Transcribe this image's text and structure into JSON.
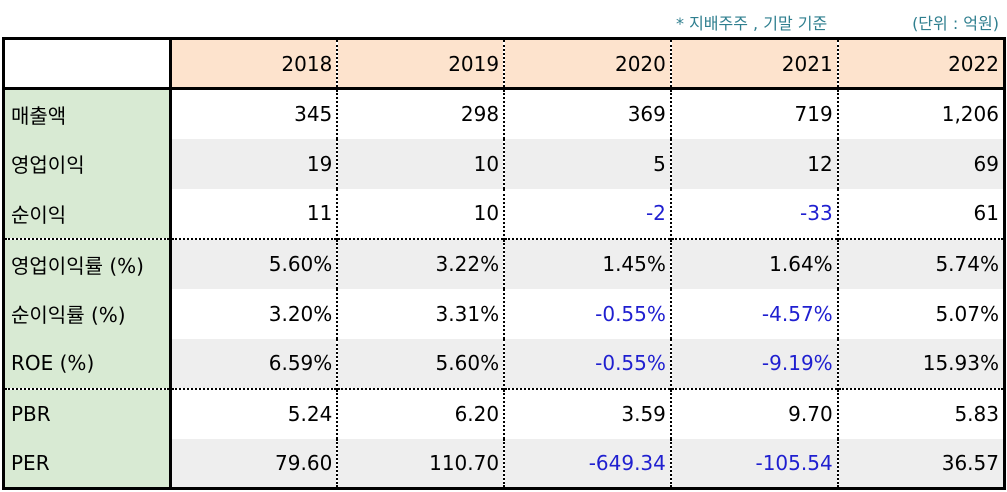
{
  "notes": {
    "basis": "* 지배주주 , 기말 기준",
    "unit": "(단위 : 억원)"
  },
  "table": {
    "years": [
      "2018",
      "2019",
      "2020",
      "2021",
      "2022"
    ],
    "rows": [
      {
        "label": "매출액",
        "values": [
          "345",
          "298",
          "369",
          "719",
          "1,206"
        ],
        "negative": [
          false,
          false,
          false,
          false,
          false
        ]
      },
      {
        "label": "영업이익",
        "values": [
          "19",
          "10",
          "5",
          "12",
          "69"
        ],
        "negative": [
          false,
          false,
          false,
          false,
          false
        ]
      },
      {
        "label": "순이익",
        "values": [
          "11",
          "10",
          "-2",
          "-33",
          "61"
        ],
        "negative": [
          false,
          false,
          true,
          true,
          false
        ]
      },
      {
        "label": "영업이익률 (%)",
        "values": [
          "5.60%",
          "3.22%",
          "1.45%",
          "1.64%",
          "5.74%"
        ],
        "negative": [
          false,
          false,
          false,
          false,
          false
        ]
      },
      {
        "label": "순이익률 (%)",
        "values": [
          "3.20%",
          "3.31%",
          "-0.55%",
          "-4.57%",
          "5.07%"
        ],
        "negative": [
          false,
          false,
          true,
          true,
          false
        ]
      },
      {
        "label": "ROE (%)",
        "values": [
          "6.59%",
          "5.60%",
          "-0.55%",
          "-9.19%",
          "15.93%"
        ],
        "negative": [
          false,
          false,
          true,
          true,
          false
        ]
      },
      {
        "label": "PBR",
        "values": [
          "5.24",
          "6.20",
          "3.59",
          "9.70",
          "5.83"
        ],
        "negative": [
          false,
          false,
          false,
          false,
          false
        ]
      },
      {
        "label": "PER",
        "values": [
          "79.60",
          "110.70",
          "-649.34",
          "-105.54",
          "36.57"
        ],
        "negative": [
          false,
          false,
          true,
          true,
          false
        ]
      }
    ]
  },
  "colors": {
    "header_bg": "#fde3cd",
    "label_bg": "#d8ead3",
    "stripe_bg": "#eeeeee",
    "negative_text": "#1f1fd0",
    "note_text": "#2f7f8f"
  }
}
